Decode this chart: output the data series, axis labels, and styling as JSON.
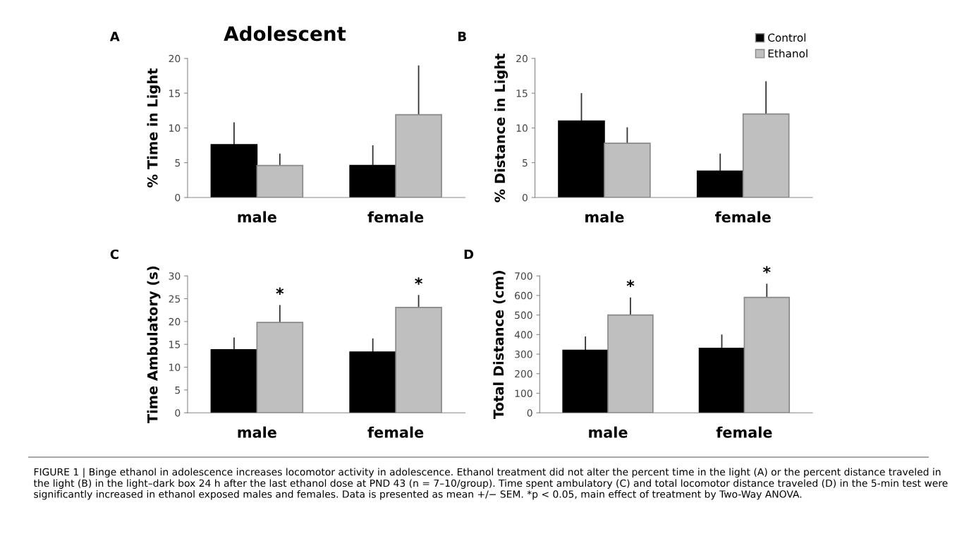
{
  "chart_data": [
    {
      "type": "bar",
      "title": "Adolescent",
      "ylabel": "% Time in Light",
      "categories": [
        "male",
        "female"
      ],
      "ylim": [
        0,
        20
      ],
      "yticks": [
        0,
        5,
        10,
        15,
        20
      ],
      "grid": false,
      "annotations": [
        "A"
      ],
      "series": [
        {
          "color": "#000000",
          "values": [
            7.6,
            4.6
          ],
          "errors": [
            [
              7.6,
              10.8
            ],
            [
              4.6,
              7.5
            ]
          ]
        },
        {
          "color": "#bfbfbf",
          "values": [
            4.6,
            11.9
          ],
          "errors": [
            [
              4.6,
              6.3
            ],
            [
              11.9,
              19.0
            ]
          ]
        }
      ]
    },
    {
      "type": "bar",
      "ylabel": "% Distance in Light",
      "categories": [
        "male",
        "female"
      ],
      "ylim": [
        0,
        20
      ],
      "yticks": [
        0,
        5,
        10,
        15,
        20
      ],
      "grid": false,
      "legend": "top right",
      "annotations": [
        "B"
      ],
      "series": [
        {
          "name": "Control",
          "color": "#000000",
          "values": [
            11.0,
            3.8
          ],
          "errors": [
            [
              11.0,
              15.0
            ],
            [
              3.8,
              6.3
            ]
          ]
        },
        {
          "name": "Ethanol",
          "color": "#bfbfbf",
          "values": [
            7.8,
            12.0
          ],
          "errors": [
            [
              7.8,
              10.1
            ],
            [
              12.0,
              16.7
            ]
          ]
        }
      ]
    },
    {
      "type": "bar",
      "ylabel": "Time Ambulatory (s)",
      "categories": [
        "male",
        "female"
      ],
      "ylim": [
        0,
        30
      ],
      "yticks": [
        0,
        5,
        10,
        15,
        20,
        25,
        30
      ],
      "grid": false,
      "annotations": [
        "C",
        "*",
        "*"
      ],
      "series": [
        {
          "color": "#000000",
          "values": [
            13.8,
            13.3
          ],
          "errors": [
            [
              13.8,
              16.5
            ],
            [
              13.3,
              16.3
            ]
          ]
        },
        {
          "color": "#bfbfbf",
          "values": [
            19.8,
            23.1
          ],
          "errors": [
            [
              19.8,
              23.6
            ],
            [
              23.1,
              25.8
            ]
          ]
        }
      ]
    },
    {
      "type": "bar",
      "ylabel": "Total Distance (cm)",
      "categories": [
        "male",
        "female"
      ],
      "ylim": [
        0,
        700
      ],
      "yticks": [
        0,
        100,
        200,
        300,
        400,
        500,
        600,
        700
      ],
      "grid": false,
      "annotations": [
        "D",
        "*",
        "*",
        "FIGURE 1 | Binge ethanol in adolescence increases locomotor activity in adolescence. Ethanol treatment did not alter the percent time in the light (A) or the percent distance traveled in the light (B) in the light–dark box 24 h after the last ethanol dose at PND 43 (n = 7–10/group). Time spent ambulatory (C) and total locomotor distance traveled (D) in the 5-min test were significantly increased in ethanol exposed males and females. Data is presented as mean +/− SEM. *p < 0.05, main effect of treatment by Two-Way ANOVA."
      ],
      "series": [
        {
          "color": "#000000",
          "values": [
            320,
            330
          ],
          "errors": [
            [
              320,
              390
            ],
            [
              330,
              400
            ]
          ]
        },
        {
          "color": "#bfbfbf",
          "values": [
            500,
            590
          ],
          "errors": [
            [
              500,
              590
            ],
            [
              590,
              660
            ]
          ]
        }
      ]
    }
  ]
}
